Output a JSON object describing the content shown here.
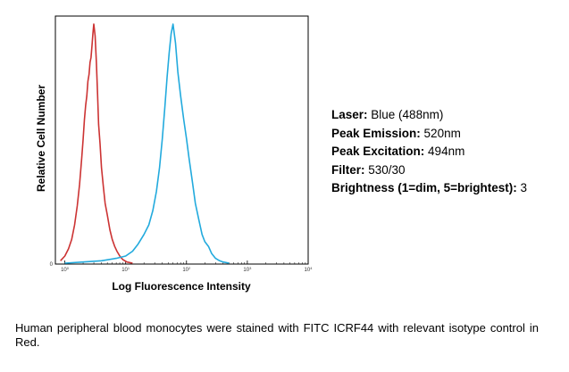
{
  "chart_data": {
    "type": "line",
    "title": "",
    "xlabel": "Log Fluorescence Intensity",
    "ylabel": "Relative Cell Number",
    "xscale": "log",
    "xlim": [
      0.7,
      10000
    ],
    "ylim": [
      0,
      1.0
    ],
    "grid": false,
    "legend": "none",
    "xticks": [
      {
        "value": 1,
        "label": "0"
      },
      {
        "value": 10,
        "label": "1"
      },
      {
        "value": 100,
        "label": "2"
      },
      {
        "value": 1000,
        "label": "3"
      },
      {
        "value": 10000,
        "label": "4"
      }
    ],
    "series": [
      {
        "color": "#cc3333",
        "x": [
          0.85,
          1.0,
          1.15,
          1.3,
          1.45,
          1.6,
          1.75,
          1.9,
          2.0,
          2.1,
          2.2,
          2.3,
          2.4,
          2.5,
          2.6,
          2.7,
          2.8,
          2.9,
          3.0,
          3.15,
          3.3,
          3.45,
          3.6,
          3.8,
          4.0,
          4.3,
          4.6,
          5.0,
          5.5,
          6.0,
          6.6,
          7.2,
          8.0,
          9.0,
          10.5,
          13.0
        ],
        "y": [
          0.01,
          0.03,
          0.06,
          0.1,
          0.16,
          0.24,
          0.33,
          0.44,
          0.52,
          0.6,
          0.66,
          0.7,
          0.76,
          0.79,
          0.84,
          0.86,
          0.91,
          0.96,
          1.0,
          0.95,
          0.84,
          0.71,
          0.58,
          0.5,
          0.4,
          0.32,
          0.25,
          0.2,
          0.14,
          0.1,
          0.07,
          0.05,
          0.03,
          0.015,
          0.005,
          0.0
        ]
      },
      {
        "color": "#22aadd",
        "x": [
          1.0,
          2.0,
          4.0,
          7.0,
          10.0,
          13.0,
          16.0,
          20.0,
          24.0,
          28.0,
          32.0,
          36.0,
          40.0,
          44.0,
          48.0,
          52.0,
          56.0,
          60.0,
          66.0,
          72.0,
          80.0,
          90.0,
          100.0,
          110.0,
          125.0,
          140.0,
          160.0,
          180.0,
          200.0,
          230.0,
          260.0,
          300.0,
          350.0,
          400.0,
          500.0
        ],
        "y": [
          0.0,
          0.005,
          0.01,
          0.02,
          0.03,
          0.05,
          0.08,
          0.12,
          0.16,
          0.22,
          0.3,
          0.4,
          0.52,
          0.65,
          0.78,
          0.88,
          0.96,
          1.0,
          0.92,
          0.8,
          0.7,
          0.6,
          0.52,
          0.44,
          0.34,
          0.25,
          0.18,
          0.12,
          0.09,
          0.07,
          0.04,
          0.02,
          0.01,
          0.005,
          0.0
        ]
      }
    ]
  },
  "specs": [
    {
      "label": "Laser:",
      "value": " Blue (488nm)"
    },
    {
      "label": "Peak Emission:",
      "value": " 520nm"
    },
    {
      "label": "Peak Excitation:",
      "value": " 494nm"
    },
    {
      "label": "Filter:",
      "value": " 530/30"
    },
    {
      "label": "Brightness (1=dim, 5=brightest):",
      "value": " 3"
    }
  ],
  "caption": "Human peripheral blood monocytes were stained with FITC ICRF44 with relevant isotype control in Red."
}
